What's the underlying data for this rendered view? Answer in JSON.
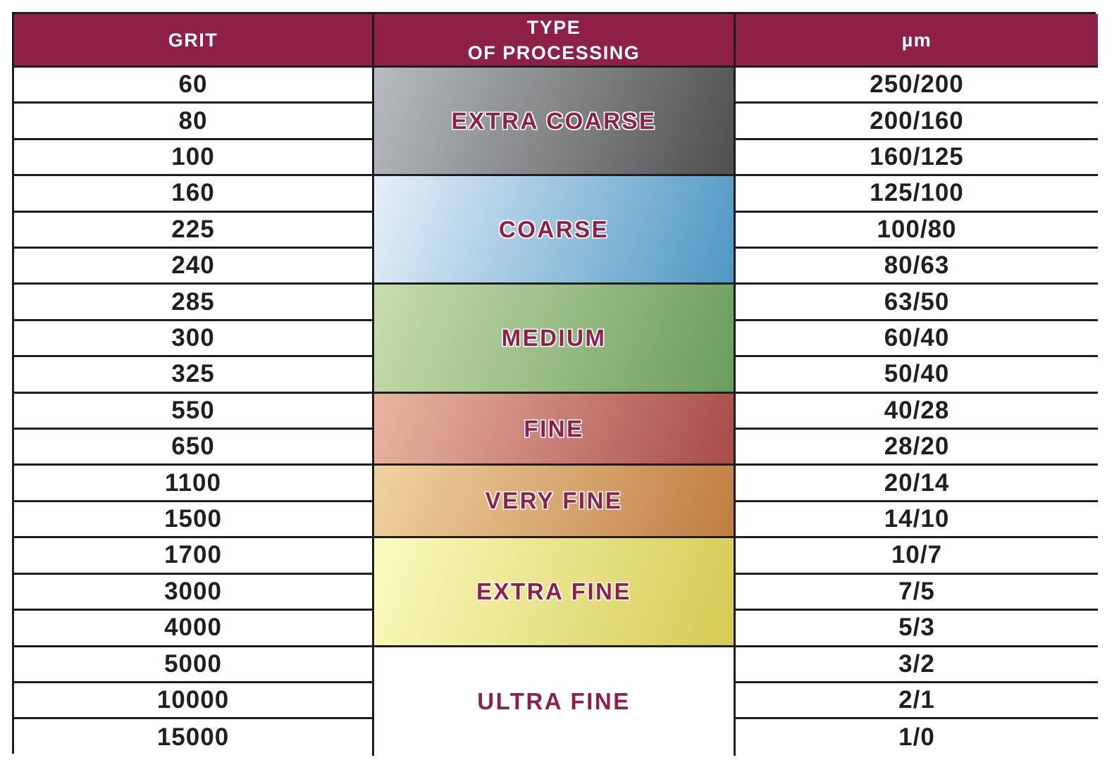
{
  "table": {
    "headers": {
      "grit": "GRIT",
      "type_line1": "TYPE",
      "type_line2": "OF PROCESSING",
      "um": "µm"
    },
    "rows": [
      {
        "grit": "60",
        "um": "250/200"
      },
      {
        "grit": "80",
        "um": "200/160"
      },
      {
        "grit": "100",
        "um": "160/125"
      },
      {
        "grit": "160",
        "um": "125/100"
      },
      {
        "grit": "225",
        "um": "100/80"
      },
      {
        "grit": "240",
        "um": "80/63"
      },
      {
        "grit": "285",
        "um": "63/50"
      },
      {
        "grit": "300",
        "um": "60/40"
      },
      {
        "grit": "325",
        "um": "50/40"
      },
      {
        "grit": "550",
        "um": "40/28"
      },
      {
        "grit": "650",
        "um": "28/20"
      },
      {
        "grit": "1100",
        "um": "20/14"
      },
      {
        "grit": "1500",
        "um": "14/10"
      },
      {
        "grit": "1700",
        "um": "10/7"
      },
      {
        "grit": "3000",
        "um": "7/5"
      },
      {
        "grit": "4000",
        "um": "5/3"
      },
      {
        "grit": "5000",
        "um": "3/2"
      },
      {
        "grit": "10000",
        "um": "2/1"
      },
      {
        "grit": "15000",
        "um": "1/0"
      }
    ],
    "types": [
      {
        "label": "EXTRA COARSE",
        "row_span": 3,
        "gradient_from": "#b8bcc0",
        "gradient_to": "#4f4f4f"
      },
      {
        "label": "COARSE",
        "row_span": 3,
        "gradient_from": "#e6f0f9",
        "gradient_to": "#4d97c4"
      },
      {
        "label": "MEDIUM",
        "row_span": 3,
        "gradient_from": "#c8ddad",
        "gradient_to": "#6a9c5e"
      },
      {
        "label": "FINE",
        "row_span": 2,
        "gradient_from": "#e9b6a1",
        "gradient_to": "#a84b4c"
      },
      {
        "label": "VERY FINE",
        "row_span": 2,
        "gradient_from": "#f1d29f",
        "gradient_to": "#c07d43"
      },
      {
        "label": "EXTRA FINE",
        "row_span": 3,
        "gradient_from": "#fbfbc0",
        "gradient_to": "#d4cb52"
      },
      {
        "label": "ULTRA FINE",
        "row_span": 3,
        "gradient_from": "#ffffff",
        "gradient_to": "#ffffff"
      }
    ],
    "colors": {
      "header_bg": "#8f2149",
      "header_text": "#ffffff",
      "type_text": "#8f2149",
      "body_text": "#231f20",
      "border": "#1d1d1d"
    }
  }
}
